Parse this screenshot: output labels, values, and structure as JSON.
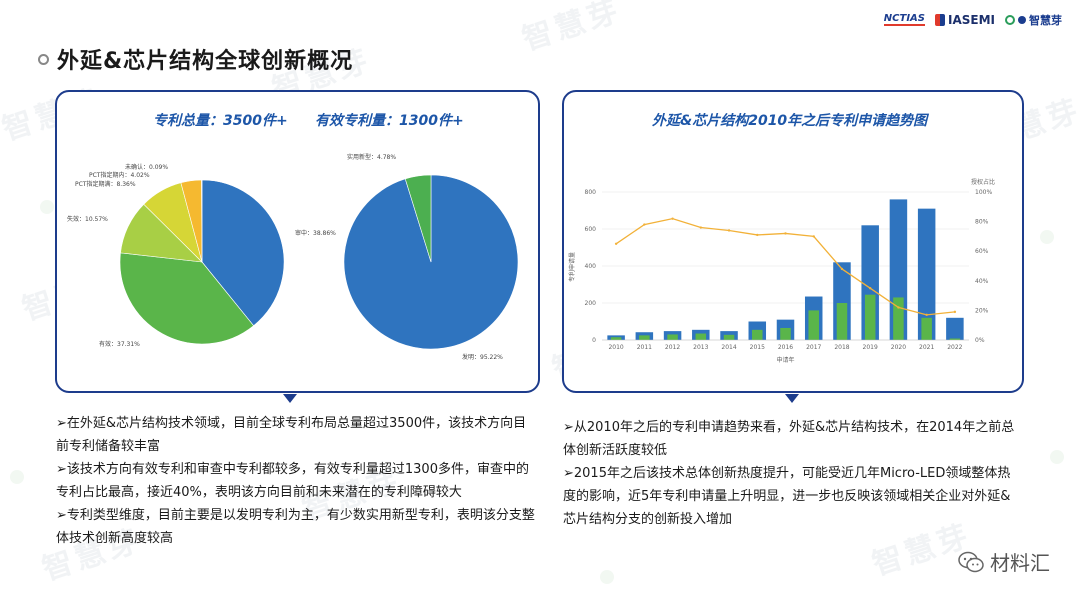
{
  "header": {
    "title": "外延&芯片结构全球创新概况",
    "logos": [
      "NCTIAS",
      "IASEMI",
      "智慧芽"
    ]
  },
  "watermark_text": "智慧芽",
  "left_panel": {
    "heading_total": "专利总量：3500件+",
    "heading_valid": "有效专利量：1300件+",
    "pie1": {
      "slices": [
        {
          "label": "审中：38.86%",
          "value": 38.86,
          "color": "#2f74bf"
        },
        {
          "label": "有效：37.31%",
          "value": 37.31,
          "color": "#5ab54a"
        },
        {
          "label": "失效：10.57%",
          "value": 10.57,
          "color": "#a8cf45"
        },
        {
          "label": "PCT指定期满：8.36%",
          "value": 8.36,
          "color": "#d6d636"
        },
        {
          "label": "PCT指定期内：4.02%",
          "value": 4.02,
          "color": "#f5b930"
        },
        {
          "label": "未确认：0.09%",
          "value": 0.09,
          "color": "#e8923a"
        }
      ]
    },
    "pie2": {
      "slices": [
        {
          "label": "发明：95.22%",
          "value": 95.22,
          "color": "#2f74bf"
        },
        {
          "label": "实用新型：4.78%",
          "value": 4.78,
          "color": "#4caf50"
        }
      ]
    },
    "bullets": [
      "➢在外延&芯片结构技术领域，目前全球专利布局总量超过3500件，该技术方向目前专利储备较丰富",
      "➢该技术方向有效专利和审查中专利都较多，有效专利量超过1300多件，审查中的专利占比最高，接近40%，表明该方向目前和未来潜在的专利障碍较大",
      "➢专利类型维度，目前主要是以发明专利为主，有少数实用新型专利，表明该分支整体技术创新高度较高"
    ]
  },
  "right_panel": {
    "heading": "外延&芯片结构2010年之后专利申请趋势图",
    "bullets": [
      "➢从2010年之后的专利申请趋势来看，外延&芯片结构技术，在2014年之前总体创新活跃度较低",
      "➢2015年之后该技术总体创新热度提升，可能受近几年Micro-LED领域整体热度的影响，近5年专利申请量上升明显，进一步也反映该领域相关企业对外延&芯片结构分支的创新投入增加"
    ]
  },
  "chart_data": {
    "type": "bar",
    "title": "外延&芯片结构2010年之后专利申请趋势图",
    "xlabel": "申请年",
    "ylabel": "专利申请量",
    "y2label": "授权占比",
    "categories": [
      "2010",
      "2011",
      "2012",
      "2013",
      "2014",
      "2015",
      "2016",
      "2017",
      "2018",
      "2019",
      "2020",
      "2021",
      "2022"
    ],
    "ylim": [
      0,
      800
    ],
    "yticks": [
      0,
      200,
      400,
      600,
      800
    ],
    "y2lim": [
      0,
      100
    ],
    "y2ticks": [
      "0%",
      "20%",
      "40%",
      "60%",
      "80%",
      "100%"
    ],
    "series": [
      {
        "type": "bar",
        "color": "#2f74bf",
        "values": [
          25,
          42,
          48,
          55,
          48,
          100,
          110,
          235,
          420,
          620,
          760,
          710,
          120
        ]
      },
      {
        "type": "bar",
        "color": "#5ab54a",
        "values": [
          15,
          25,
          30,
          35,
          28,
          55,
          65,
          160,
          200,
          245,
          230,
          120,
          8
        ]
      },
      {
        "type": "line",
        "axis": "y2",
        "color": "#f2b138",
        "values": [
          65,
          78,
          82,
          76,
          74,
          71,
          72,
          70,
          48,
          35,
          22,
          17,
          19
        ]
      }
    ]
  },
  "footer": {
    "brand": "材料汇"
  }
}
